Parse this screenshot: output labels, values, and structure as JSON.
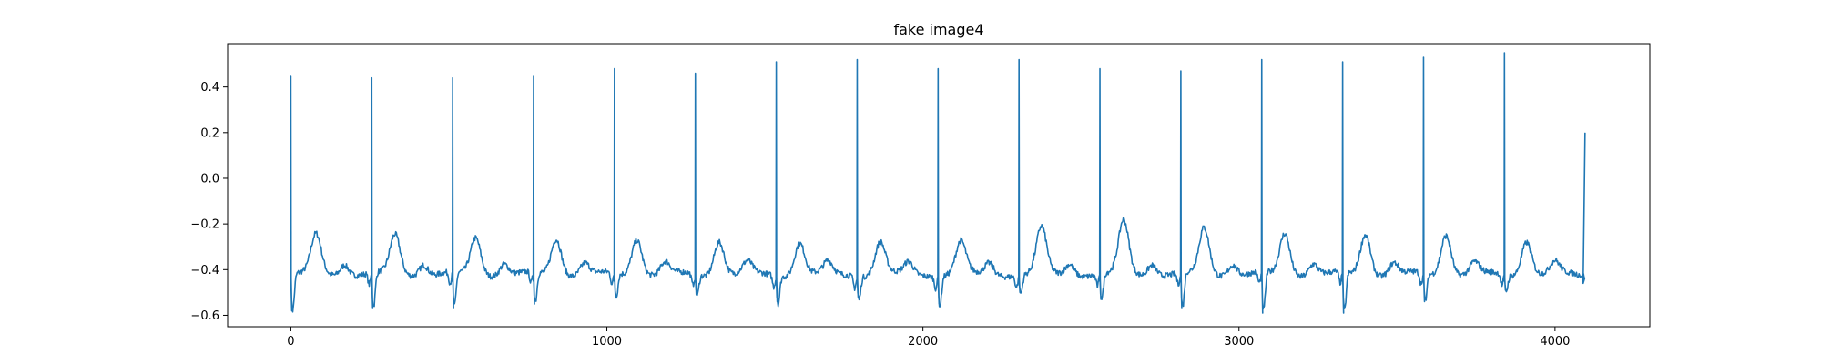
{
  "chart_data": {
    "type": "line",
    "title": "fake image4",
    "xlabel": "",
    "ylabel": "",
    "xlim": [
      -200,
      4300
    ],
    "ylim": [
      -0.65,
      0.59
    ],
    "grid": false,
    "xticks": [
      0,
      1000,
      2000,
      3000,
      4000
    ],
    "xtick_labels": [
      "0",
      "1000",
      "2000",
      "3000",
      "4000"
    ],
    "yticks": [
      -0.6,
      -0.4,
      -0.2,
      0.0,
      0.2,
      0.4
    ],
    "ytick_labels": [
      "−0.6",
      "−0.4",
      "−0.2",
      "0.0",
      "0.2",
      "0.4"
    ],
    "series": [
      {
        "color": "#1f77b4",
        "description": "ECG-like signal: sharp R-peaks roughly every 256 samples, baseline near -0.42 with T-wave bumps",
        "x_start": 0,
        "x_end": 4095,
        "r_peaks": [
          {
            "x": 0,
            "peak": 0.45,
            "trough": -0.58
          },
          {
            "x": 256,
            "peak": 0.44,
            "trough": -0.57
          },
          {
            "x": 512,
            "peak": 0.44,
            "trough": -0.57
          },
          {
            "x": 768,
            "peak": 0.45,
            "trough": -0.55
          },
          {
            "x": 1024,
            "peak": 0.48,
            "trough": -0.52
          },
          {
            "x": 1280,
            "peak": 0.46,
            "trough": -0.51
          },
          {
            "x": 1536,
            "peak": 0.51,
            "trough": -0.54
          },
          {
            "x": 1792,
            "peak": 0.52,
            "trough": -0.52
          },
          {
            "x": 2048,
            "peak": 0.48,
            "trough": -0.55
          },
          {
            "x": 2304,
            "peak": 0.52,
            "trough": -0.5
          },
          {
            "x": 2560,
            "peak": 0.48,
            "trough": -0.53
          },
          {
            "x": 2816,
            "peak": 0.47,
            "trough": -0.57
          },
          {
            "x": 3072,
            "peak": 0.52,
            "trough": -0.59
          },
          {
            "x": 3328,
            "peak": 0.51,
            "trough": -0.59
          },
          {
            "x": 3584,
            "peak": 0.53,
            "trough": -0.54
          },
          {
            "x": 3840,
            "peak": 0.55,
            "trough": -0.49
          }
        ],
        "t_waves": [
          {
            "x": 80,
            "y": -0.25
          },
          {
            "x": 330,
            "y": -0.25
          },
          {
            "x": 585,
            "y": -0.26
          },
          {
            "x": 840,
            "y": -0.26
          },
          {
            "x": 1095,
            "y": -0.26
          },
          {
            "x": 1355,
            "y": -0.27
          },
          {
            "x": 1610,
            "y": -0.28
          },
          {
            "x": 1865,
            "y": -0.28
          },
          {
            "x": 2120,
            "y": -0.28
          },
          {
            "x": 2375,
            "y": -0.22
          },
          {
            "x": 2635,
            "y": -0.19
          },
          {
            "x": 2890,
            "y": -0.22
          },
          {
            "x": 3145,
            "y": -0.24
          },
          {
            "x": 3400,
            "y": -0.24
          },
          {
            "x": 3655,
            "y": -0.24
          },
          {
            "x": 3910,
            "y": -0.27
          }
        ],
        "baseline": -0.42,
        "end_value": 0.2
      }
    ]
  }
}
